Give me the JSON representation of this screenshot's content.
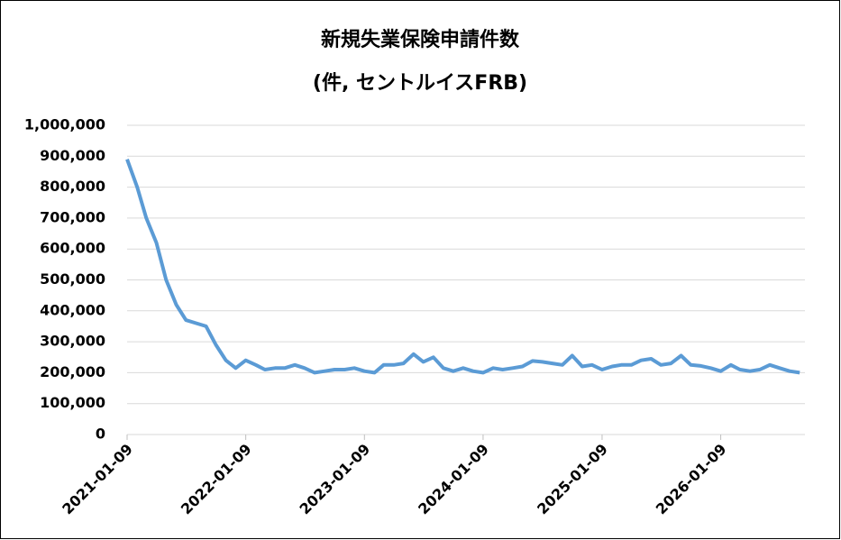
{
  "chart_data": {
    "type": "line",
    "title": "新規失業保険申請件数",
    "subtitle": "(件, セントルイスFRB)",
    "x": [
      "2021-01-09",
      "2021-02-09",
      "2021-03-09",
      "2021-04-09",
      "2021-05-09",
      "2021-06-09",
      "2021-07-09",
      "2021-08-09",
      "2021-09-09",
      "2021-10-09",
      "2021-11-09",
      "2021-12-09",
      "2022-01-09",
      "2022-02-09",
      "2022-03-09",
      "2022-04-09",
      "2022-05-09",
      "2022-06-09",
      "2022-07-09",
      "2022-08-09",
      "2022-09-09",
      "2022-10-09",
      "2022-11-09",
      "2022-12-09",
      "2023-01-09",
      "2023-02-09",
      "2023-03-09",
      "2023-04-09",
      "2023-05-09",
      "2023-06-09",
      "2023-07-09",
      "2023-08-09",
      "2023-09-09",
      "2023-10-09",
      "2023-11-09",
      "2023-12-09",
      "2024-01-09",
      "2024-02-09",
      "2024-03-09",
      "2024-04-09",
      "2024-05-09",
      "2024-06-09",
      "2024-07-09",
      "2024-08-09",
      "2024-09-09",
      "2024-10-09",
      "2024-11-09",
      "2024-12-09",
      "2025-01-09",
      "2025-02-09",
      "2025-03-09",
      "2025-04-09",
      "2025-05-09",
      "2025-06-09",
      "2025-07-09",
      "2025-08-09",
      "2025-09-09",
      "2025-10-09",
      "2025-11-09",
      "2025-12-09",
      "2026-01-09",
      "2026-02-09",
      "2026-03-09",
      "2026-04-09",
      "2026-05-09",
      "2026-06-09",
      "2026-07-09",
      "2026-08-09",
      "2026-09-09"
    ],
    "series": [
      {
        "name": "新規失業保険申請件数",
        "color": "#5b9bd5",
        "values": [
          890000,
          800000,
          700000,
          620000,
          500000,
          420000,
          370000,
          360000,
          350000,
          290000,
          240000,
          215000,
          240000,
          225000,
          210000,
          215000,
          215000,
          225000,
          215000,
          200000,
          205000,
          210000,
          210000,
          215000,
          205000,
          200000,
          225000,
          225000,
          230000,
          260000,
          235000,
          250000,
          215000,
          205000,
          215000,
          205000,
          200000,
          215000,
          210000,
          215000,
          220000,
          238000,
          235000,
          230000,
          225000,
          255000,
          220000,
          225000,
          210000,
          220000,
          225000,
          225000,
          240000,
          245000,
          225000,
          230000,
          255000,
          225000,
          222000,
          215000,
          205000,
          225000,
          210000,
          205000,
          210000,
          225000,
          215000,
          205000,
          200000
        ]
      }
    ],
    "xlim": [
      "2021-01-09",
      "2026-09-25"
    ],
    "xticks": [
      "2021-01-09",
      "2022-01-09",
      "2023-01-09",
      "2024-01-09",
      "2025-01-09",
      "2026-01-09"
    ],
    "ylim": [
      0,
      1000000
    ],
    "yticks": [
      0,
      {
        "value": 100000,
        "label": "100,000"
      },
      {
        "value": 200000,
        "label": "200,000"
      },
      {
        "value": 300000,
        "label": "300,000"
      },
      {
        "value": 400000,
        "label": "400,000"
      },
      {
        "value": 500000,
        "label": "500,000"
      },
      {
        "value": 600000,
        "label": "600,000"
      },
      {
        "value": 700000,
        "label": "700,000"
      },
      {
        "value": 800000,
        "label": "800,000"
      },
      {
        "value": 900000,
        "label": "900,000"
      },
      {
        "value": 1000000,
        "label": "1,000,000"
      }
    ],
    "grid": true
  }
}
